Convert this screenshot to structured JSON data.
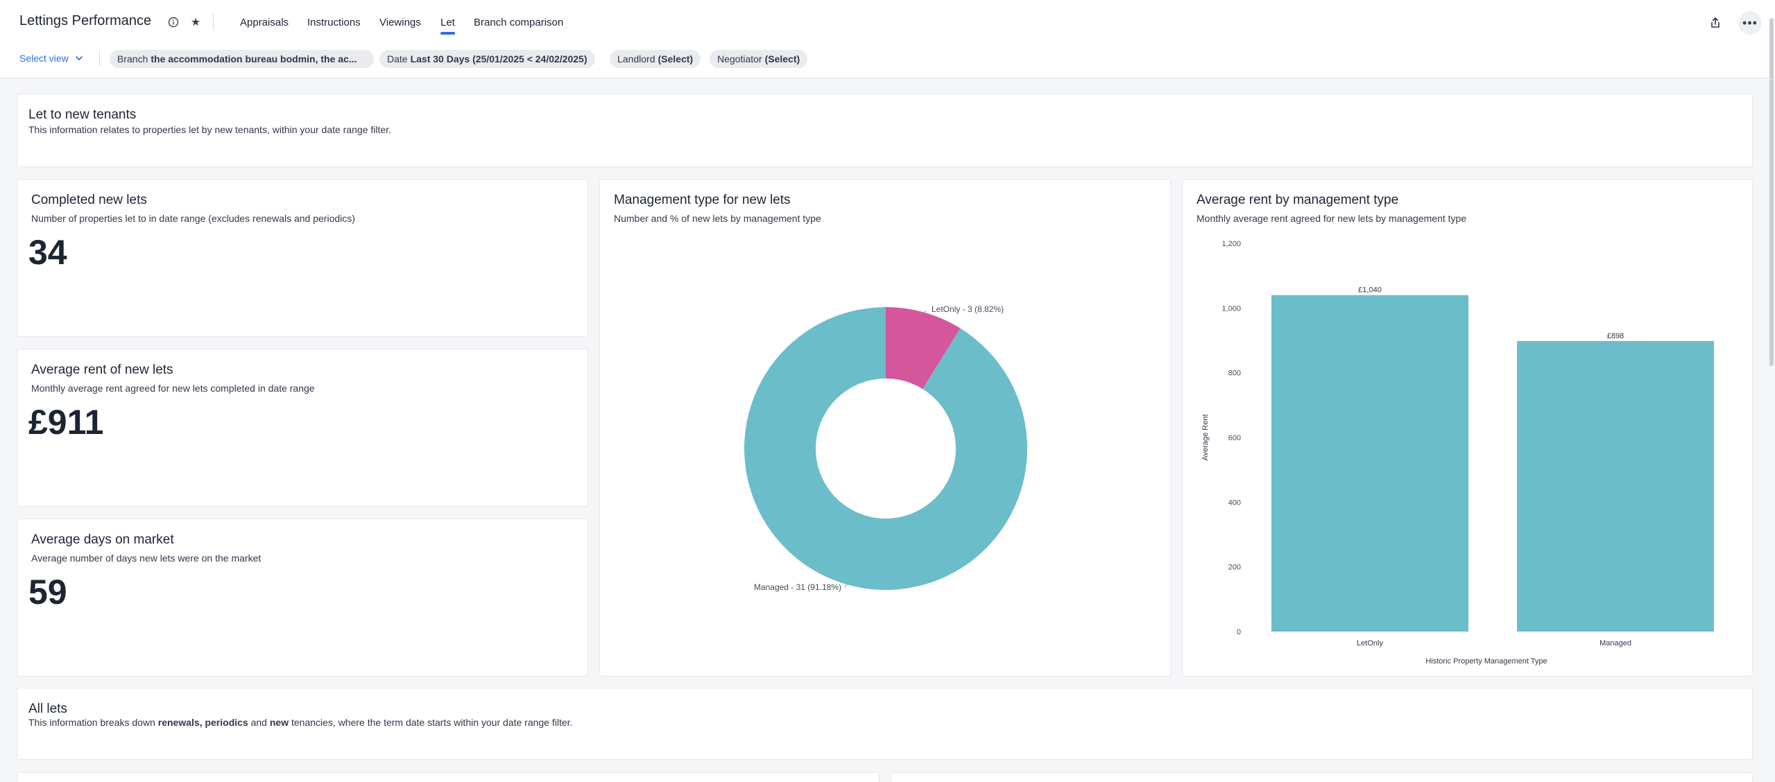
{
  "app": {
    "title": "Lettings Performance"
  },
  "tabs": [
    {
      "label": "Appraisals"
    },
    {
      "label": "Instructions"
    },
    {
      "label": "Viewings"
    },
    {
      "label": "Let",
      "active": true
    },
    {
      "label": "Branch comparison"
    }
  ],
  "filters": {
    "select_view": "Select view",
    "branch": {
      "label": "Branch",
      "value": "the accommodation bureau bodmin, the ac..."
    },
    "date": {
      "label": "Date",
      "value": "Last 30 Days (25/01/2025 < 24/02/2025)"
    },
    "landlord": {
      "label": "Landlord",
      "value": "(Select)"
    },
    "negotiator": {
      "label": "Negotiator",
      "value": "(Select)"
    }
  },
  "sections": {
    "new_tenants": {
      "title": "Let to new tenants",
      "description": "This information relates to properties let by new tenants, within your date range filter."
    },
    "all_lets": {
      "title": "All lets",
      "desc_parts": [
        "This information breaks down ",
        "renewals, periodics",
        " and ",
        "new",
        " tenancies, where the term date starts within your date range filter."
      ]
    }
  },
  "kpis": {
    "completed": {
      "title": "Completed new lets",
      "subtitle": "Number of properties let to in date range (excludes renewals and periodics)",
      "value": "34"
    },
    "avg_rent": {
      "title": "Average rent of new lets",
      "subtitle": "Monthly average rent agreed for new lets completed in date range",
      "value": "£911"
    },
    "avg_days": {
      "title": "Average days on market",
      "subtitle": "Average number of days new lets were on the market",
      "value": "59"
    }
  },
  "donut_card": {
    "title": "Management type for new lets",
    "subtitle": "Number and % of new lets by management type"
  },
  "bar_card": {
    "title": "Average rent by management type",
    "subtitle": "Monthly average rent agreed for new lets by management type"
  },
  "colors": {
    "teal": "#6cbdca",
    "pink": "#d4579b",
    "accent": "#2f6fde"
  },
  "chart_data": [
    {
      "type": "pie",
      "variant": "donut",
      "labels": [
        "LetOnly",
        "Managed"
      ],
      "values": [
        3,
        31
      ],
      "percents": [
        8.82,
        91.18
      ],
      "data_labels": [
        "LetOnly - 3 (8.82%)",
        "Managed - 31 (91.18%)"
      ],
      "colors": [
        "#d4579b",
        "#6cbdca"
      ]
    },
    {
      "type": "bar",
      "categories": [
        "LetOnly",
        "Managed"
      ],
      "values": [
        1040,
        898
      ],
      "data_labels": [
        "£1,040",
        "£898"
      ],
      "xlabel": "Historic Property Management Type",
      "ylabel": "Average Rent",
      "ylim": [
        0,
        1200
      ],
      "yticks": [
        "0",
        "200",
        "400",
        "600",
        "800",
        "1,000",
        "1,200"
      ],
      "grid": false,
      "color": "#6cbdca"
    }
  ]
}
